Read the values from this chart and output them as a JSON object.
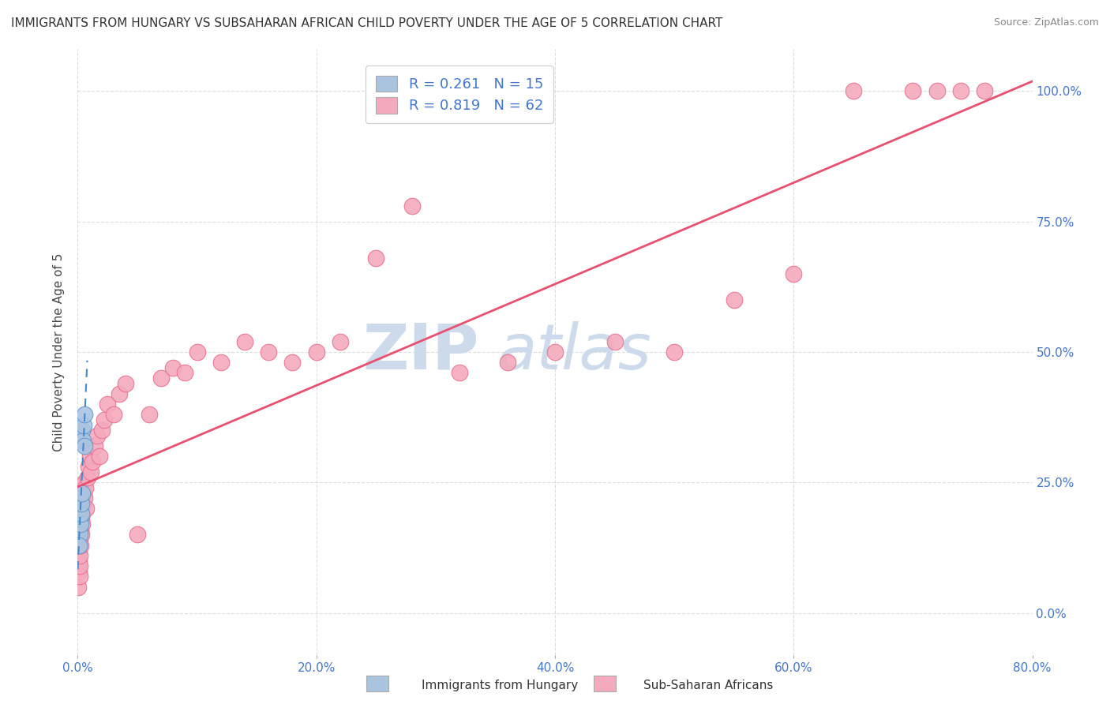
{
  "title": "IMMIGRANTS FROM HUNGARY VS SUBSAHARAN AFRICAN CHILD POVERTY UNDER THE AGE OF 5 CORRELATION CHART",
  "source": "Source: ZipAtlas.com",
  "ylabel": "Child Poverty Under the Age of 5",
  "hungary_color": "#aac4e0",
  "hungary_edge": "#6699cc",
  "subsaharan_color": "#f4aabc",
  "subsaharan_edge": "#e87090",
  "trendline_hungary_color": "#4488cc",
  "trendline_subsaharan_color": "#e85070",
  "hungary_x": [
    0.1,
    0.15,
    0.18,
    0.2,
    0.22,
    0.25,
    0.28,
    0.3,
    0.35,
    0.4,
    0.45,
    0.5,
    0.55,
    0.6,
    0.12
  ],
  "hungary_y": [
    16.0,
    18.0,
    15.0,
    20.0,
    17.0,
    22.0,
    19.0,
    21.0,
    23.0,
    35.0,
    33.0,
    36.0,
    32.0,
    38.0,
    13.0
  ],
  "subsaharan_x": [
    0.05,
    0.08,
    0.1,
    0.12,
    0.14,
    0.16,
    0.18,
    0.2,
    0.22,
    0.25,
    0.28,
    0.3,
    0.32,
    0.35,
    0.38,
    0.4,
    0.45,
    0.5,
    0.55,
    0.6,
    0.65,
    0.7,
    0.8,
    0.9,
    1.0,
    1.1,
    1.2,
    1.4,
    1.6,
    1.8,
    2.0,
    2.2,
    2.5,
    3.0,
    3.5,
    4.0,
    5.0,
    6.0,
    7.0,
    8.0,
    9.0,
    10.0,
    12.0,
    14.0,
    16.0,
    18.0,
    20.0,
    22.0,
    25.0,
    28.0,
    32.0,
    36.0,
    40.0,
    45.0,
    50.0,
    55.0,
    60.0,
    65.0,
    70.0,
    72.0,
    74.0,
    76.0
  ],
  "subsaharan_y": [
    5.0,
    8.0,
    10.0,
    12.0,
    7.0,
    9.0,
    11.0,
    14.0,
    13.0,
    16.0,
    18.0,
    20.0,
    15.0,
    17.0,
    19.0,
    22.0,
    21.0,
    23.0,
    25.0,
    22.0,
    24.0,
    20.0,
    26.0,
    28.0,
    30.0,
    27.0,
    29.0,
    32.0,
    34.0,
    30.0,
    35.0,
    37.0,
    40.0,
    38.0,
    42.0,
    44.0,
    15.0,
    38.0,
    45.0,
    47.0,
    46.0,
    50.0,
    48.0,
    52.0,
    50.0,
    48.0,
    50.0,
    52.0,
    68.0,
    78.0,
    46.0,
    48.0,
    50.0,
    52.0,
    50.0,
    60.0,
    65.0,
    100.0,
    100.0,
    100.0,
    100.0,
    100.0
  ],
  "xlim": [
    0.0,
    80.0
  ],
  "ylim": [
    -8.0,
    108.0
  ],
  "xticks": [
    0.0,
    20.0,
    40.0,
    60.0,
    80.0
  ],
  "yticks": [
    0.0,
    25.0,
    50.0,
    75.0,
    100.0
  ],
  "grid_color": "#dddddd",
  "watermark_color": "#ccdaeb",
  "title_fontsize": 11,
  "tick_fontsize": 11,
  "label_fontsize": 11
}
